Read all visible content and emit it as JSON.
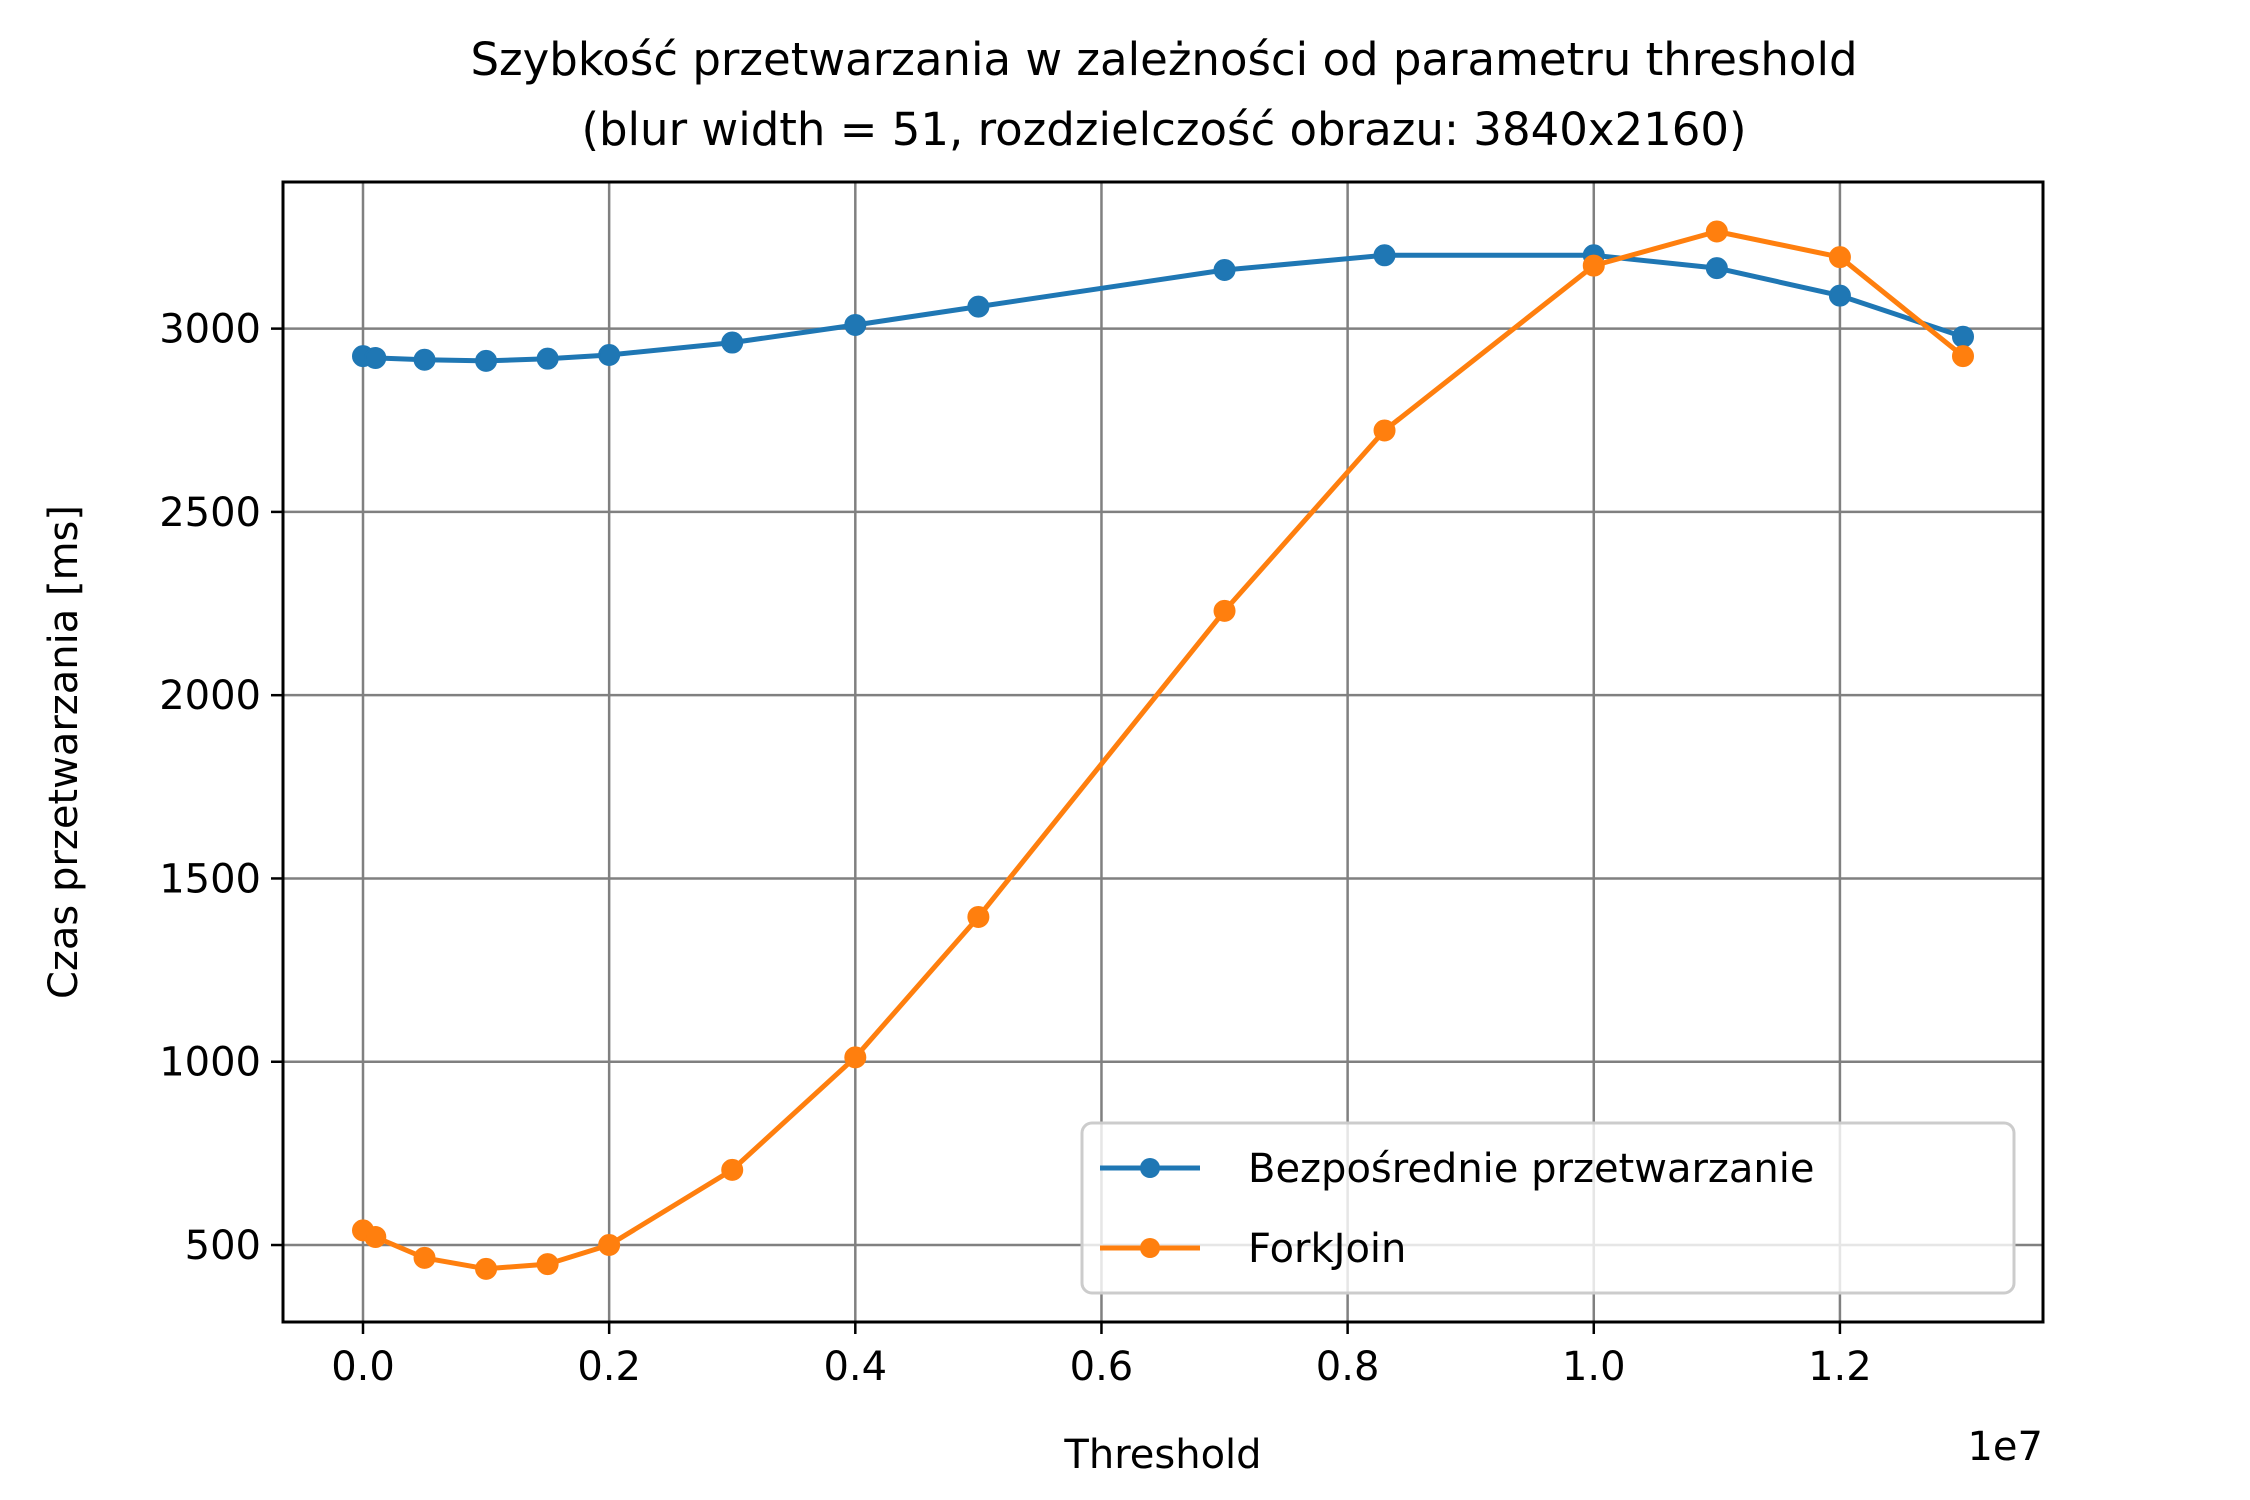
{
  "chart_data": {
    "type": "line",
    "title": "Szybkość przetwarzania w zależności od parametru threshold",
    "subtitle": "(blur width = 51, rozdzielczość obrazu: 3840x2160)",
    "xlabel": "Threshold",
    "ylabel": "Czas przetwarzania [ms]",
    "x_offset_label": "1e7",
    "xlim": [
      -0.065,
      1.365
    ],
    "ylim": [
      290,
      3400
    ],
    "x_ticks": [
      0.0,
      0.2,
      0.4,
      0.6,
      0.8,
      1.0,
      1.2
    ],
    "x_tick_labels": [
      "0.0",
      "0.2",
      "0.4",
      "0.6",
      "0.8",
      "1.0",
      "1.2"
    ],
    "y_ticks": [
      500,
      1000,
      1500,
      2000,
      2500,
      3000
    ],
    "y_tick_labels": [
      "500",
      "1000",
      "1500",
      "2000",
      "2500",
      "3000"
    ],
    "grid": true,
    "legend_position": "lower-right",
    "series": [
      {
        "name": "Bezpośrednie przetwarzanie",
        "color": "#1f77b4",
        "x": [
          0.0,
          0.01,
          0.05,
          0.1,
          0.15,
          0.2,
          0.3,
          0.4,
          0.5,
          0.7,
          0.83,
          1.0,
          1.1,
          1.2,
          1.3
        ],
        "y": [
          2925,
          2920,
          2915,
          2912,
          2918,
          2928,
          2962,
          3010,
          3060,
          3160,
          3200,
          3200,
          3165,
          3090,
          2978
        ]
      },
      {
        "name": "ForkJoin",
        "color": "#ff7f0e",
        "x": [
          0.0,
          0.01,
          0.05,
          0.1,
          0.15,
          0.2,
          0.3,
          0.4,
          0.5,
          0.7,
          0.83,
          1.0,
          1.1,
          1.2,
          1.3
        ],
        "y": [
          540,
          522,
          465,
          435,
          448,
          500,
          705,
          1012,
          1395,
          2230,
          2722,
          3172,
          3265,
          3195,
          2925
        ]
      }
    ]
  }
}
